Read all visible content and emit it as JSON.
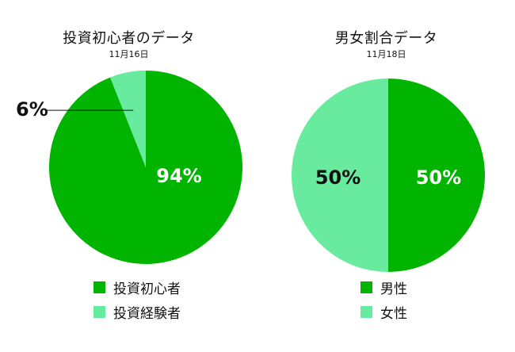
{
  "colors": {
    "dark_green": "#00b400",
    "light_green": "#69eb9f",
    "label_dark": "#111111",
    "label_light": "#ffffff"
  },
  "chart_data": [
    {
      "type": "pie",
      "title": "投資初心者のデータ",
      "subtitle": "11月16日",
      "slices": [
        {
          "label": "投資初心者",
          "value": 94,
          "display": "94%",
          "color": "#00b400"
        },
        {
          "label": "投資経験者",
          "value": 6,
          "display": "6%",
          "color": "#69eb9f"
        }
      ]
    },
    {
      "type": "pie",
      "title": "男女割合データ",
      "subtitle": "11月18日",
      "slices": [
        {
          "label": "男性",
          "value": 50,
          "display": "50%",
          "color": "#00b400"
        },
        {
          "label": "女性",
          "value": 50,
          "display": "50%",
          "color": "#69eb9f"
        }
      ]
    }
  ]
}
